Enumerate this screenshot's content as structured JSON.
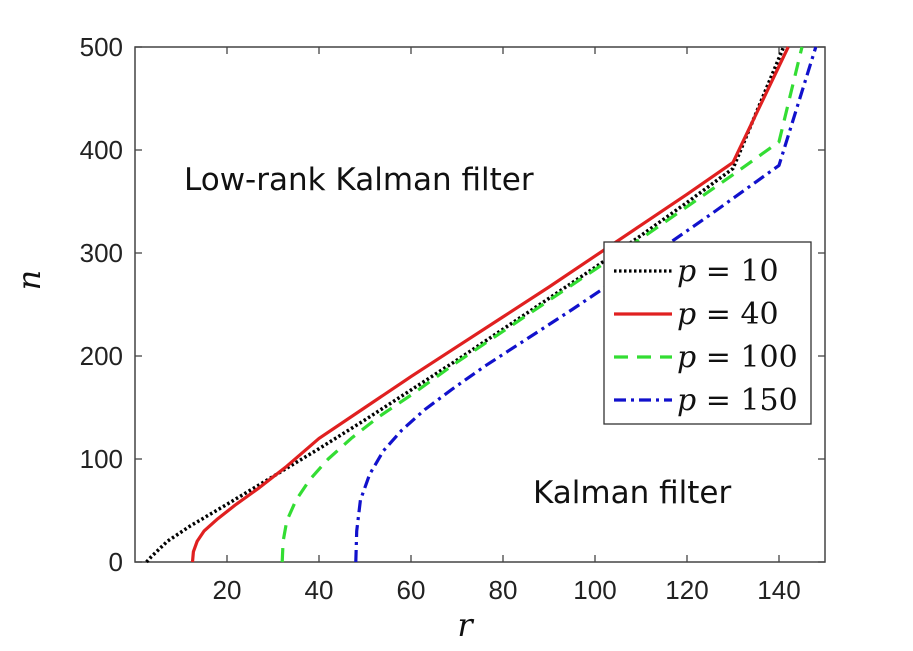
{
  "chart_data": {
    "type": "line",
    "title": "",
    "xlabel": "r",
    "ylabel": "n",
    "xlim": [
      0,
      150
    ],
    "ylim": [
      0,
      500
    ],
    "xticks": [
      20,
      40,
      60,
      80,
      100,
      120,
      140
    ],
    "yticks": [
      0,
      100,
      200,
      300,
      400,
      500
    ],
    "grid": false,
    "legend_position": "right",
    "annotations": [
      {
        "id": "low-rank",
        "text": "Low-rank Kalman filter"
      },
      {
        "id": "kalman",
        "text": "Kalman filter"
      }
    ],
    "series": [
      {
        "name": "p = 10",
        "var": "p",
        "value": "10",
        "p": 10,
        "color": "#000000",
        "style": "dotted",
        "x": [
          2.5,
          3.5,
          7,
          12,
          20,
          30,
          40,
          50,
          60,
          70,
          80,
          90,
          100,
          110,
          120,
          130,
          141
        ],
        "y": [
          0,
          5,
          20,
          35,
          56,
          83,
          110,
          138,
          167,
          196,
          226,
          256,
          286,
          317,
          349,
          382,
          500
        ]
      },
      {
        "name": "p = 40",
        "var": "p",
        "value": "40",
        "p": 40,
        "color": "#e02020",
        "style": "solid",
        "x": [
          12.5,
          12.7,
          13.5,
          15,
          18,
          22,
          27,
          33,
          40,
          50,
          60,
          70,
          80,
          90,
          100,
          110,
          120,
          130,
          142
        ],
        "y": [
          0,
          10,
          20,
          30,
          42,
          56,
          72,
          93,
          120,
          150,
          180,
          209,
          238,
          267,
          297,
          327,
          357,
          388,
          500
        ]
      },
      {
        "name": "p = 100",
        "var": "p",
        "value": "100",
        "p": 100,
        "color": "#33dd33",
        "style": "dashed",
        "x": [
          32,
          32.2,
          33,
          35,
          38,
          42,
          47,
          53,
          60,
          70,
          80,
          90,
          100,
          110,
          120,
          130,
          140,
          145
        ],
        "y": [
          0,
          20,
          40,
          60,
          80,
          100,
          120,
          141,
          162,
          194,
          224,
          254,
          284,
          314,
          345,
          376,
          408,
          500
        ]
      },
      {
        "name": "p = 150",
        "var": "p",
        "value": "150",
        "p": 150,
        "color": "#1111cc",
        "style": "dashdot",
        "x": [
          48,
          48.2,
          49,
          51,
          54,
          58,
          63,
          69,
          76,
          85,
          95,
          105,
          115,
          125,
          135,
          140,
          148
        ],
        "y": [
          0,
          30,
          60,
          85,
          108,
          128,
          148,
          168,
          190,
          216,
          245,
          275,
          306,
          337,
          369,
          385,
          500
        ]
      }
    ]
  }
}
